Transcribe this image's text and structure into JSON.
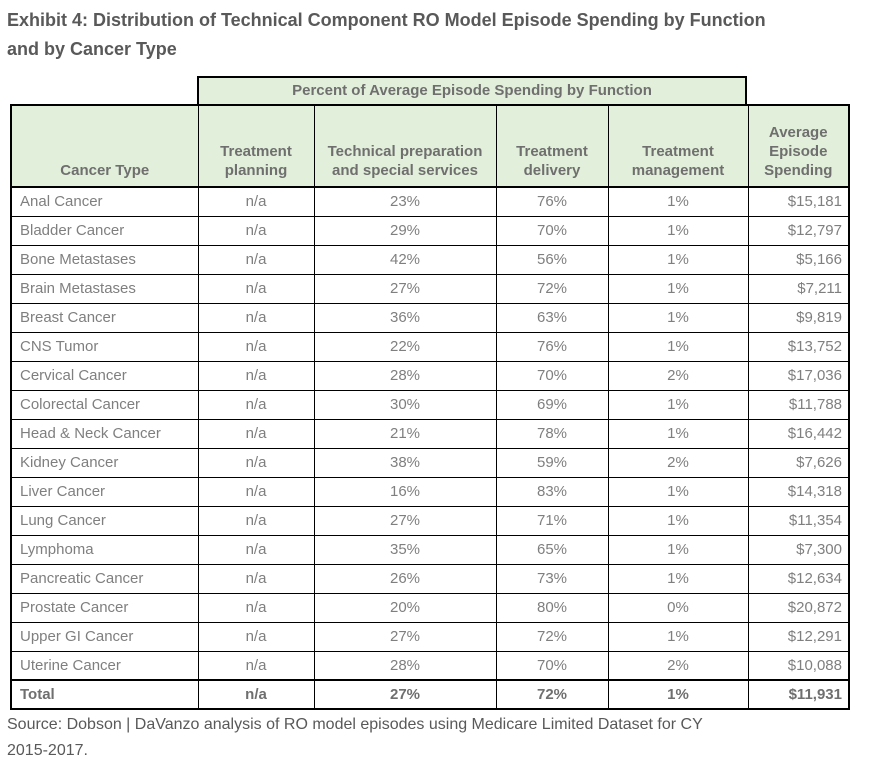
{
  "page": {
    "title_line1": "Exhibit 4: Distribution of Technical Component RO Model Episode Spending by Function",
    "title_line2": "and by Cancer Type",
    "source_line1": "Source: Dobson | DaVanzo analysis of RO model episodes using Medicare Limited Dataset for CY",
    "source_line2": "2015-2017."
  },
  "colors": {
    "header_fill": "#E2EFDA",
    "border": "#000000",
    "body_text": "#7F7F7F",
    "header_text": "#6F6F6F",
    "title_text": "#595959"
  },
  "chart_data": {
    "type": "table",
    "title": "Exhibit 4: Distribution of Technical Component RO Model Episode Spending by Function and by Cancer Type",
    "span_header": "Percent of Average Episode Spending by Function",
    "columns": [
      "Cancer Type",
      "Treatment planning",
      "Technical preparation and special services",
      "Treatment delivery",
      "Treatment management",
      "Average Episode Spending"
    ],
    "rows": [
      [
        "Anal Cancer",
        "n/a",
        "23%",
        "76%",
        "1%",
        "$15,181"
      ],
      [
        "Bladder Cancer",
        "n/a",
        "29%",
        "70%",
        "1%",
        "$12,797"
      ],
      [
        "Bone Metastases",
        "n/a",
        "42%",
        "56%",
        "1%",
        "$5,166"
      ],
      [
        "Brain Metastases",
        "n/a",
        "27%",
        "72%",
        "1%",
        "$7,211"
      ],
      [
        "Breast Cancer",
        "n/a",
        "36%",
        "63%",
        "1%",
        "$9,819"
      ],
      [
        "CNS Tumor",
        "n/a",
        "22%",
        "76%",
        "1%",
        "$13,752"
      ],
      [
        "Cervical Cancer",
        "n/a",
        "28%",
        "70%",
        "2%",
        "$17,036"
      ],
      [
        "Colorectal Cancer",
        "n/a",
        "30%",
        "69%",
        "1%",
        "$11,788"
      ],
      [
        "Head & Neck Cancer",
        "n/a",
        "21%",
        "78%",
        "1%",
        "$16,442"
      ],
      [
        "Kidney Cancer",
        "n/a",
        "38%",
        "59%",
        "2%",
        "$7,626"
      ],
      [
        "Liver Cancer",
        "n/a",
        "16%",
        "83%",
        "1%",
        "$14,318"
      ],
      [
        "Lung Cancer",
        "n/a",
        "27%",
        "71%",
        "1%",
        "$11,354"
      ],
      [
        "Lymphoma",
        "n/a",
        "35%",
        "65%",
        "1%",
        "$7,300"
      ],
      [
        "Pancreatic Cancer",
        "n/a",
        "26%",
        "73%",
        "1%",
        "$12,634"
      ],
      [
        "Prostate Cancer",
        "n/a",
        "20%",
        "80%",
        "0%",
        "$20,872"
      ],
      [
        "Upper GI Cancer",
        "n/a",
        "27%",
        "72%",
        "1%",
        "$12,291"
      ],
      [
        "Uterine Cancer",
        "n/a",
        "28%",
        "70%",
        "2%",
        "$10,088"
      ]
    ],
    "total_row": [
      "Total",
      "n/a",
      "27%",
      "72%",
      "1%",
      "$11,931"
    ],
    "source": "Source: Dobson | DaVanzo analysis of RO model episodes using Medicare Limited Dataset for CY 2015-2017."
  }
}
